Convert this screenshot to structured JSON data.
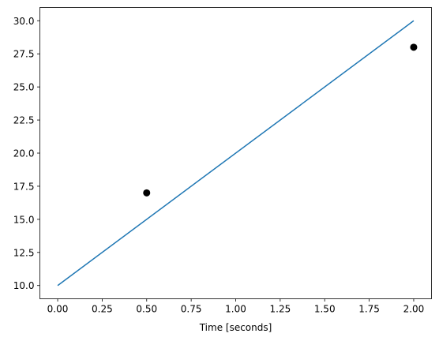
{
  "chart_data": {
    "type": "line",
    "xlabel": "Time [seconds]",
    "grid": false,
    "xlim": [
      -0.1,
      2.1
    ],
    "ylim": [
      9,
      31
    ],
    "xticks": [
      {
        "value": 0,
        "label": "0.00"
      },
      {
        "value": 0.25,
        "label": "0.25"
      },
      {
        "value": 0.5,
        "label": "0.50"
      },
      {
        "value": 0.75,
        "label": "0.75"
      },
      {
        "value": 1,
        "label": "1.00"
      },
      {
        "value": 1.25,
        "label": "1.25"
      },
      {
        "value": 1.5,
        "label": "1.50"
      },
      {
        "value": 1.75,
        "label": "1.75"
      },
      {
        "value": 2,
        "label": "2.00"
      }
    ],
    "yticks": [
      {
        "value": 10,
        "label": "10.0"
      },
      {
        "value": 12.5,
        "label": "12.5"
      },
      {
        "value": 15,
        "label": "15.0"
      },
      {
        "value": 17.5,
        "label": "17.5"
      },
      {
        "value": 20,
        "label": "20.0"
      },
      {
        "value": 22.5,
        "label": "22.5"
      },
      {
        "value": 25,
        "label": "25.0"
      },
      {
        "value": 27.5,
        "label": "27.5"
      },
      {
        "value": 30,
        "label": "30.0"
      }
    ],
    "series": [
      {
        "type": "line",
        "color": "#1f77b4",
        "x": [
          0,
          2
        ],
        "values": [
          10,
          30
        ]
      },
      {
        "type": "scatter",
        "color": "#000000",
        "x": [
          0.5,
          2
        ],
        "values": [
          17,
          28
        ]
      }
    ]
  }
}
